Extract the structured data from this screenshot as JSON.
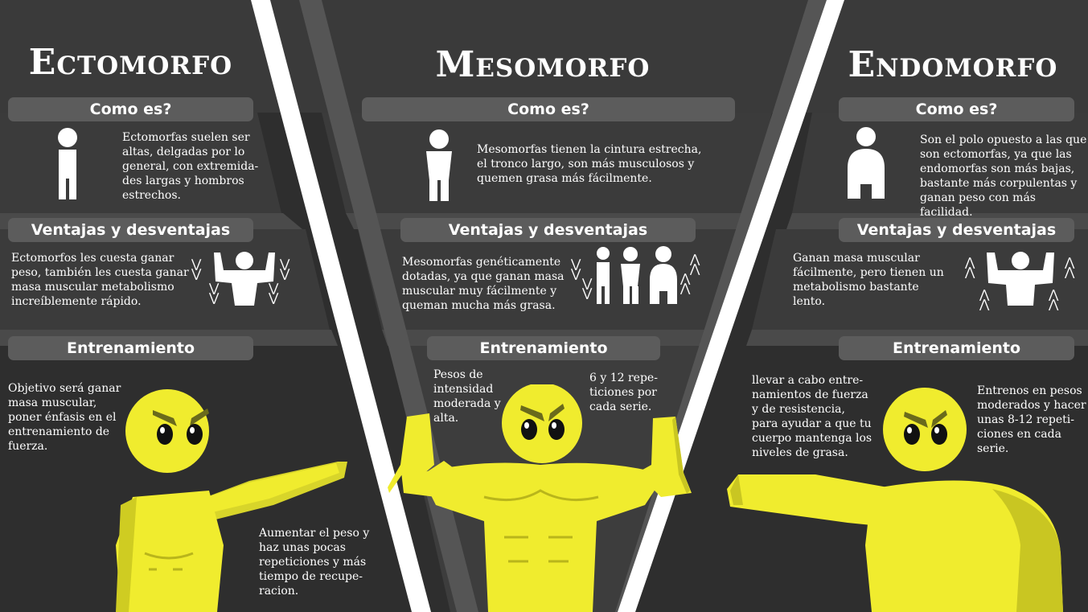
{
  "ectomorfo": {
    "title": "Ectomorfo",
    "como_es": {
      "header": "Como es?",
      "text": "Ectomorfas suelen ser\naltas, delgadas por lo\ngeneral, con extremida-\ndes largas y hombros\nestrechos."
    },
    "ventajas": {
      "header": "Ventajas y desventajas",
      "text": "Ectomorfos les cuesta ganar\npeso, también les cuesta ganar\nmasa muscular metabolismo\nincreíblemente rápido."
    },
    "entrenamiento": {
      "header": "Entrenamiento",
      "text_1": "Objetivo será ganar\nmasa muscular,\nponer énfasis en el\nentrenamiento de\nfuerza.",
      "text_2": "Aumentar el peso y\nhaz unas pocas\nrepeticiones y más\ntiempo de recupe-\nracion."
    }
  },
  "mesomorfo": {
    "title": "Mesomorfo",
    "como_es": {
      "header": "Como es?",
      "text": "Mesomorfas tienen la cintura estrecha,\nel tronco largo, son más musculosos y\nquemen grasa más fácilmente."
    },
    "ventajas": {
      "header": "Ventajas y desventajas",
      "text": "Mesomorfas genéticamente\ndotadas, ya que ganan masa\nmuscular muy fácilmente y\nqueman mucha más grasa."
    },
    "entrenamiento": {
      "header": "Entrenamiento",
      "text_1": "Pesos de\nintensidad\nmoderada y\nalta.",
      "text_2": "6 y 12 repe-\nticiones por\ncada serie."
    }
  },
  "endomorfo": {
    "title": "Endomorfo",
    "como_es": {
      "header": "Como es?",
      "text": "Son el polo opuesto a las que\nson ectomorfas, ya que las\nendomorfas son más bajas,\nbastante más corpulentas y\nganan peso con más facilidad."
    },
    "ventajas": {
      "header": "Ventajas y desventajas",
      "text": " Ganan masa muscular\nfácilmente, pero tienen un\nmetabolismo bastante\nlento."
    },
    "entrenamiento": {
      "header": "Entrenamiento",
      "text_1": "llevar a cabo entre-\nnamientos de fuerza\ny de resistencia,\npara ayudar a que tu\ncuerpo mantenga los\nniveles de grasa.",
      "text_2": "Entrenos en pesos\nmoderados y hacer\nunas 8-12 repeti-\nciones en cada\nserie."
    }
  },
  "colors": {
    "background": "#2e2e2e",
    "panel": "#3b3b3b",
    "pill": "#5c5c5c",
    "accent_yellow": "#f0ec2e",
    "divider": "#ffffff"
  },
  "icons": [
    "ectomorph-silhouette-icon",
    "mesomorph-silhouette-icon",
    "endomorph-silhouette-icon",
    "flexing-torso-icon",
    "three-body-types-icon",
    "chevron-down-icon",
    "chevron-up-icon",
    "yellow-muscle-man-illustration"
  ]
}
